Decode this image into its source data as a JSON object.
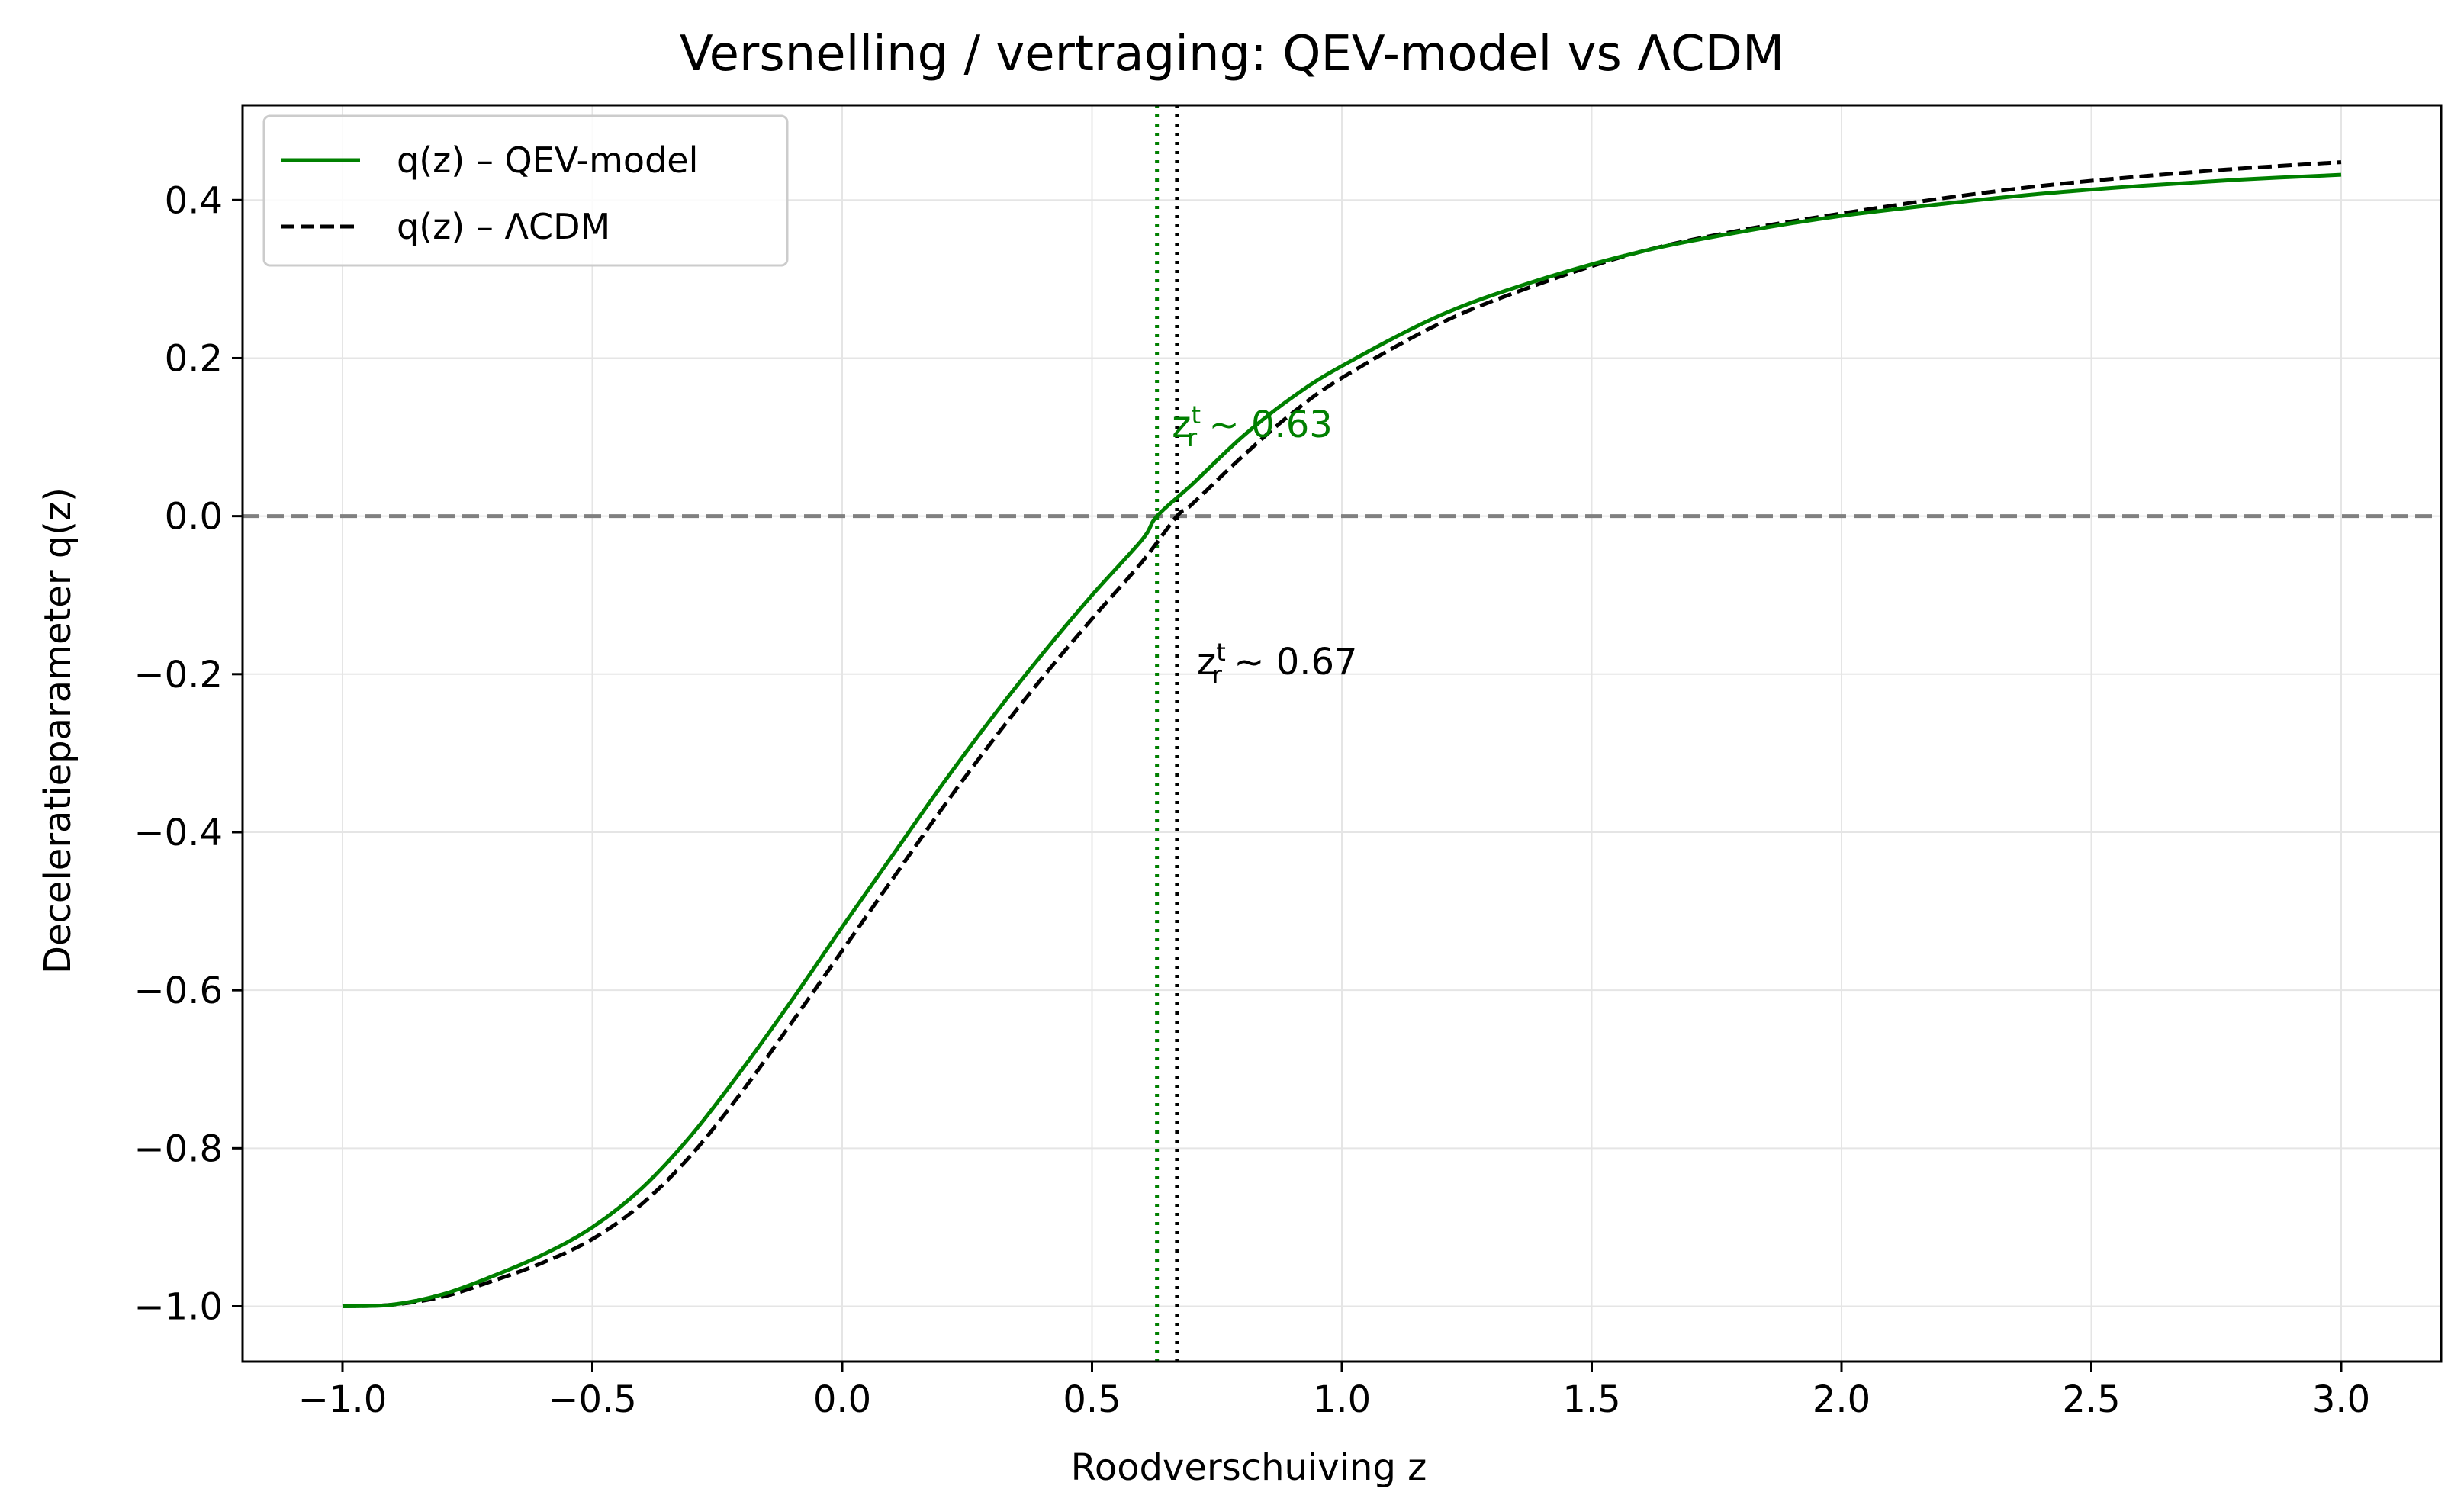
{
  "chart_data": {
    "type": "line",
    "title": "Versnelling / vertraging: QEV-model vs ΛCDM",
    "xlabel": "Roodverschuiving z",
    "ylabel": "Deceleratieparameter q(z)",
    "xlim": [
      -1.2,
      3.2
    ],
    "ylim": [
      -1.07,
      0.52
    ],
    "xticks": [
      -1.0,
      -0.5,
      0.0,
      0.5,
      1.0,
      1.5,
      2.0,
      2.5,
      3.0
    ],
    "xtick_labels": [
      "−1.0",
      "−0.5",
      "0.0",
      "0.5",
      "1.0",
      "1.5",
      "2.0",
      "2.5",
      "3.0"
    ],
    "yticks": [
      -1.0,
      -0.8,
      -0.6,
      -0.4,
      -0.2,
      0.0,
      0.2,
      0.4
    ],
    "ytick_labels": [
      "−1.0",
      "−0.8",
      "−0.6",
      "−0.4",
      "−0.2",
      "0.0",
      "0.2",
      "0.4"
    ],
    "grid": true,
    "legend_position": "top-left",
    "colors": {
      "qev": "#008000",
      "lcdm": "#000000",
      "zero_line": "#808080",
      "grid": "#e5e5e5"
    },
    "series": [
      {
        "name": "q(z) – QEV-model",
        "style": "solid",
        "color": "#008000",
        "x": [
          -1.0,
          -0.9,
          -0.8,
          -0.7,
          -0.6,
          -0.5,
          -0.4,
          -0.3,
          -0.2,
          -0.1,
          0.0,
          0.1,
          0.2,
          0.3,
          0.4,
          0.5,
          0.6,
          0.63,
          0.7,
          0.8,
          0.9,
          1.0,
          1.2,
          1.4,
          1.6,
          1.8,
          2.0,
          2.2,
          2.4,
          2.6,
          2.8,
          3.0
        ],
        "y": [
          -1.0,
          -0.998,
          -0.985,
          -0.962,
          -0.935,
          -0.9,
          -0.85,
          -0.782,
          -0.7,
          -0.612,
          -0.52,
          -0.43,
          -0.34,
          -0.255,
          -0.175,
          -0.1,
          -0.03,
          0.0,
          0.04,
          0.1,
          0.15,
          0.19,
          0.255,
          0.3,
          0.335,
          0.36,
          0.38,
          0.395,
          0.408,
          0.418,
          0.426,
          0.432
        ]
      },
      {
        "name": "q(z) – ΛCDM",
        "style": "dashed",
        "color": "#000000",
        "x": [
          -1.0,
          -0.9,
          -0.8,
          -0.7,
          -0.6,
          -0.5,
          -0.4,
          -0.3,
          -0.2,
          -0.1,
          0.0,
          0.1,
          0.2,
          0.3,
          0.4,
          0.5,
          0.6,
          0.67,
          0.7,
          0.8,
          0.9,
          1.0,
          1.2,
          1.4,
          1.6,
          1.8,
          2.0,
          2.2,
          2.4,
          2.6,
          2.8,
          3.0
        ],
        "y": [
          -1.0,
          -0.998,
          -0.988,
          -0.968,
          -0.945,
          -0.915,
          -0.87,
          -0.807,
          -0.728,
          -0.64,
          -0.55,
          -0.46,
          -0.37,
          -0.285,
          -0.205,
          -0.13,
          -0.058,
          0.0,
          0.015,
          0.075,
          0.13,
          0.175,
          0.245,
          0.295,
          0.335,
          0.362,
          0.383,
          0.402,
          0.418,
          0.43,
          0.44,
          0.448
        ]
      }
    ],
    "reference_lines": {
      "horizontal_zero": 0.0,
      "vertical_qev": 0.63,
      "vertical_lcdm": 0.67
    },
    "annotations": [
      {
        "id": "qev",
        "main": "z",
        "sup": "t",
        "sub": "r",
        "rest": " ~ 0.63",
        "x": 0.66,
        "y": 0.1,
        "color": "#008000"
      },
      {
        "id": "lcdm",
        "main": "z",
        "sup": "t",
        "sub": "r",
        "rest": " ~ 0.67",
        "x": 0.71,
        "y": -0.2,
        "color": "#000000"
      }
    ]
  }
}
